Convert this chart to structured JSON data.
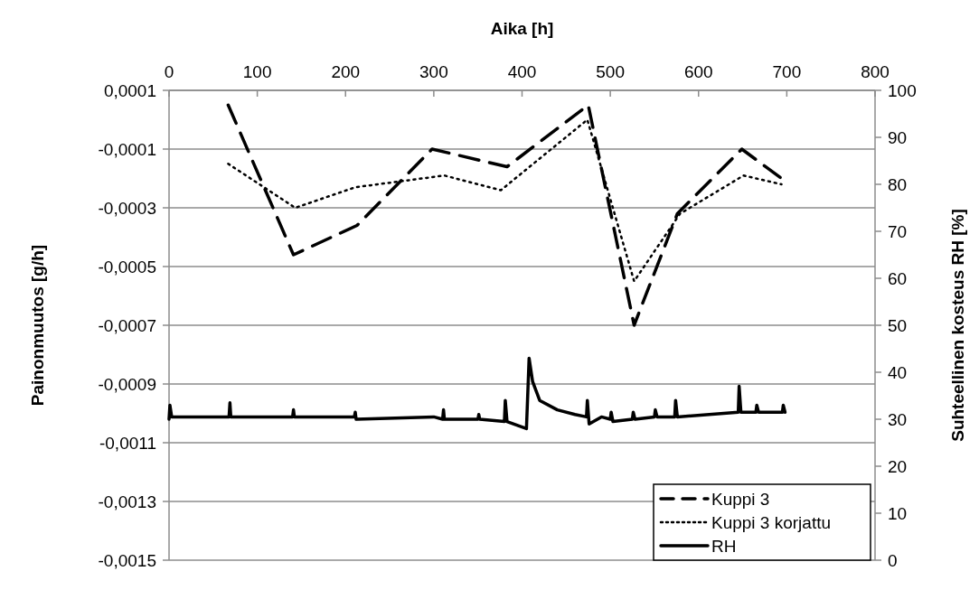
{
  "chart_data": {
    "type": "line",
    "xlabel": "Aika [h]",
    "ylabel": "Painonmuutos [g/h]",
    "y2label": "Suhteellinen kosteus RH [%]",
    "xlim": [
      0,
      800
    ],
    "xticks": [
      0,
      100,
      200,
      300,
      400,
      500,
      600,
      700,
      800
    ],
    "ylim": [
      -0.0015,
      0.0001
    ],
    "yticks": [
      {
        "value": 0.0001,
        "label": "0,0001"
      },
      {
        "value": -0.0001,
        "label": "-0,0001"
      },
      {
        "value": -0.0003,
        "label": "-0,0003"
      },
      {
        "value": -0.0005,
        "label": "-0,0005"
      },
      {
        "value": -0.0007,
        "label": "-0,0007"
      },
      {
        "value": -0.0009,
        "label": "-0,0009"
      },
      {
        "value": -0.0011,
        "label": "-0,0011"
      },
      {
        "value": -0.0013,
        "label": "-0,0013"
      },
      {
        "value": -0.0015,
        "label": "-0,0015"
      }
    ],
    "y2lim": [
      0,
      100
    ],
    "y2ticks": [
      0,
      10,
      20,
      30,
      40,
      50,
      60,
      70,
      80,
      90,
      100
    ],
    "grid": "y",
    "legend": "bottom right",
    "marker": "none",
    "series": [
      {
        "name": "Kuppi 3",
        "color": "#000000",
        "line_style": "dashed",
        "x": [
          67,
          141,
          213,
          298,
          383,
          475,
          527,
          576,
          649,
          694
        ],
        "values": [
          5e-05,
          -0.00046,
          -0.00036,
          -0.0001,
          -0.00016,
          5e-05,
          -0.0007,
          -0.00032,
          -0.0001,
          -0.0002
        ]
      },
      {
        "name": "Kuppi 3 korjattu",
        "color": "#000000",
        "line_style": "dotted",
        "x": [
          67,
          143,
          211,
          312,
          376,
          474,
          527,
          579,
          651,
          694
        ],
        "values": [
          -0.00015,
          -0.0003,
          -0.00023,
          -0.00019,
          -0.00024,
          0,
          -0.00055,
          -0.00032,
          -0.00019,
          -0.00022
        ]
      },
      {
        "name": "RH",
        "color": "#000000",
        "line_style": "solid",
        "axis": "y2",
        "x": [
          0,
          1,
          3,
          68,
          69,
          70,
          140,
          141,
          142,
          210,
          211,
          212,
          300,
          310,
          311,
          312,
          350,
          351,
          352,
          380,
          381,
          383,
          405,
          408,
          412,
          420,
          440,
          460,
          473,
          474,
          476,
          490,
          500,
          501,
          503,
          525,
          526,
          528,
          550,
          551,
          553,
          573,
          574,
          576,
          645,
          646,
          648,
          665,
          666,
          668,
          695,
          696,
          698
        ],
        "values": [
          30,
          33,
          30.5,
          30.5,
          33.5,
          30.5,
          30.5,
          32,
          30.5,
          30.5,
          31.5,
          30,
          30.5,
          30,
          32,
          30,
          30,
          31,
          30,
          29.5,
          34,
          29.5,
          28,
          43,
          38,
          34,
          32,
          31,
          30.5,
          34,
          29,
          30.5,
          30,
          31.5,
          29.5,
          30,
          31.5,
          30,
          30.5,
          32,
          30.5,
          30.5,
          34,
          30.5,
          31.5,
          37,
          31.5,
          31.5,
          33,
          31.5,
          31.5,
          33,
          31.5
        ]
      }
    ]
  }
}
